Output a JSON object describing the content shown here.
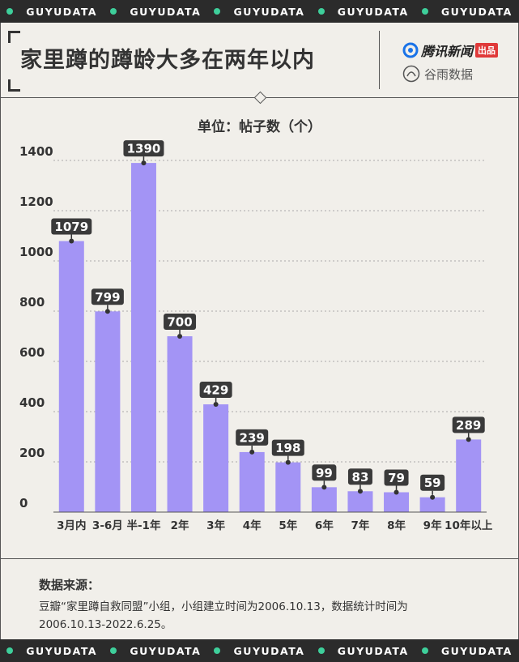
{
  "brand_band": {
    "text": "GUYUDATA",
    "count": 5
  },
  "header": {
    "title": "家里蹲的蹲龄大多在两年以内",
    "logos": {
      "tencent_text": "腾讯新闻",
      "tencent_badge": "出品",
      "guyu_text": "谷雨数据"
    }
  },
  "chart_data": {
    "type": "bar",
    "unit_label": "单位：帖子数（个）",
    "categories": [
      "3月内",
      "3-6月",
      "半-1年",
      "2年",
      "3年",
      "4年",
      "5年",
      "6年",
      "7年",
      "8年",
      "9年",
      "10年以上"
    ],
    "values": [
      1079,
      799,
      1390,
      700,
      429,
      239,
      198,
      99,
      83,
      79,
      59,
      289
    ],
    "ylim": [
      0,
      1400
    ],
    "yticks": [
      0,
      200,
      400,
      600,
      800,
      1000,
      1200,
      1400
    ],
    "grid": true,
    "bar_color": "#a394f5",
    "label_bg": "#3a3a3a",
    "label_color": "#ffffff"
  },
  "source": {
    "title": "数据来源：",
    "lines": [
      "豆瓣“家里蹲自救同盟”小组，小组建立时间为2006.10.13，数据统计时间为",
      "2006.10.13-2022.6.25。"
    ]
  },
  "colors": {
    "background": "#f1efea",
    "band": "#2b2b2b",
    "band_dot": "#3ecf9b",
    "text": "#333333"
  }
}
